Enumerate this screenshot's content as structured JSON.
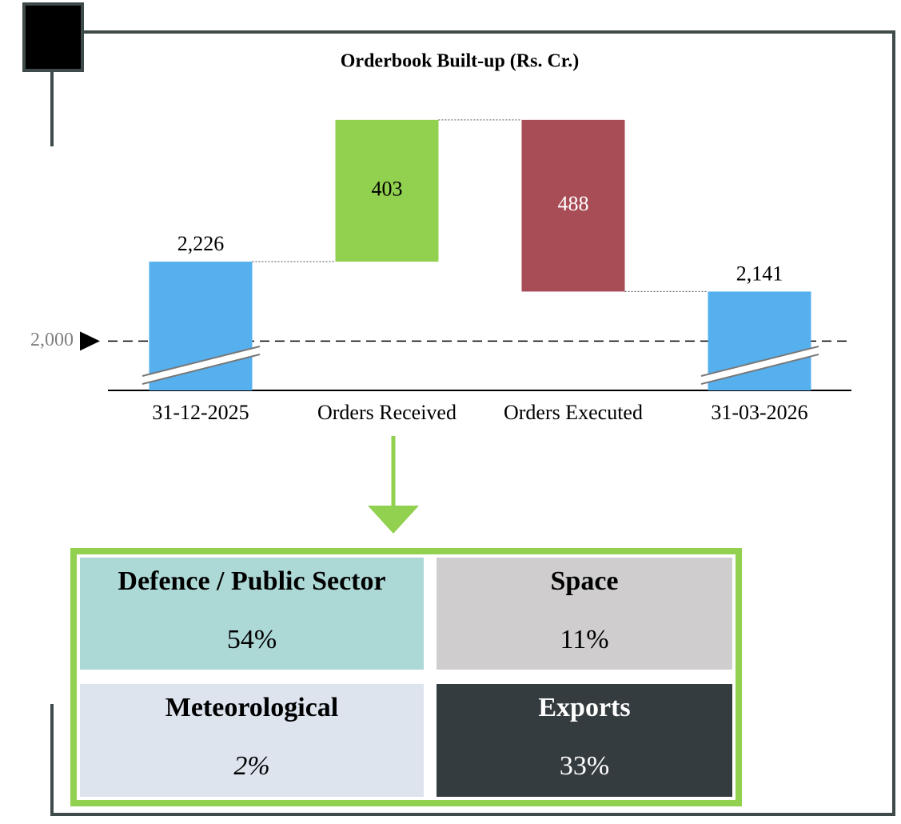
{
  "chart_data": {
    "type": "waterfall",
    "title": "Orderbook Built-up (Rs. Cr.)",
    "categories": [
      "31-12-2025",
      "Orders Received",
      "Orders Executed",
      "31-03-2026"
    ],
    "values": [
      2226,
      403,
      -488,
      2141
    ],
    "value_labels": [
      "2,226",
      "403",
      "488",
      "2,141"
    ],
    "measure": [
      "absolute",
      "relative",
      "relative",
      "absolute"
    ],
    "colors": [
      "#56b0ee",
      "#92d050",
      "#a84c55",
      "#56b0ee"
    ],
    "ylim": [
      1860,
      2640
    ],
    "yticks": [
      {
        "value": 2000,
        "label": "2,000"
      }
    ],
    "axis_break": true
  },
  "breakdown": [
    {
      "name": "Defence / Public Sector",
      "share": "54%",
      "color": "#acd8d6",
      "text_color": "#000"
    },
    {
      "name": "Space",
      "share": "11%",
      "color": "#cfcdce",
      "text_color": "#000"
    },
    {
      "name": "Meteorological",
      "share": "2%",
      "color": "#dde4ee",
      "text_color": "#000",
      "italic": true
    },
    {
      "name": "Exports",
      "share": "33%",
      "color": "#353c3f",
      "text_color": "#fff"
    }
  ]
}
